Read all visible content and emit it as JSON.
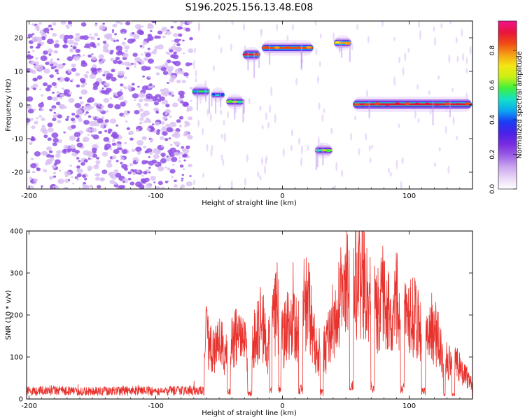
{
  "figure": {
    "title": "S196.2025.156.13.48.E08"
  },
  "chart_data": [
    {
      "type": "heatmap",
      "xlabel": "Height of straight line (km)",
      "ylabel": "Frequency (Hz)",
      "xlim": [
        -202,
        150
      ],
      "ylim": [
        -25,
        25
      ],
      "xticks": [
        -200,
        -100,
        0,
        100
      ],
      "yticks": [
        -20,
        -10,
        0,
        10,
        20
      ],
      "colorbar": {
        "label": "Normalized spectral amplitude",
        "range": [
          0,
          0.97
        ],
        "ticks": [
          0.0,
          0.2,
          0.4,
          0.6,
          0.8
        ],
        "colormap": [
          "#ffffff",
          "#e9d6f7",
          "#c9a4ef",
          "#9b5fe6",
          "#7a2be0",
          "#4a21e8",
          "#1a3cf5",
          "#0aa7f0",
          "#14e0c8",
          "#3ef03e",
          "#c8f014",
          "#f5e614",
          "#f5a014",
          "#f04a14",
          "#e8143c",
          "#f0148c"
        ]
      },
      "noise_region": {
        "x_range": [
          -202,
          -72
        ],
        "y_range": [
          -25,
          25
        ],
        "amplitude": 0.2
      },
      "segments": [
        {
          "x_start": -72,
          "x_end": -57,
          "freq": 4.0,
          "peak": 0.55
        },
        {
          "x_start": -57,
          "x_end": -45,
          "freq": 3.0,
          "peak": 0.45
        },
        {
          "x_start": -45,
          "x_end": -30,
          "freq": 1.0,
          "peak": 0.6
        },
        {
          "x_start": -32,
          "x_end": -17,
          "freq": 15.0,
          "peak": 0.92
        },
        {
          "x_start": -17,
          "x_end": 25,
          "freq": 17.0,
          "peak": 0.85
        },
        {
          "x_start": 25,
          "x_end": 40,
          "freq": -13.5,
          "peak": 0.6
        },
        {
          "x_start": 40,
          "x_end": 55,
          "freq": 18.5,
          "peak": 0.8
        },
        {
          "x_start": 55,
          "x_end": 150,
          "freq": 0.2,
          "peak": 0.95
        }
      ]
    },
    {
      "type": "line",
      "xlabel": "Height of straight line (km)",
      "ylabel": "SNR (10 * v/v)",
      "xlim": [
        -202,
        150
      ],
      "ylim": [
        0,
        400
      ],
      "xticks": [
        -200,
        -100,
        0,
        100
      ],
      "yticks": [
        0,
        100,
        200,
        300,
        400
      ],
      "color": "#e8322d",
      "series": [
        {
          "x": [
            -200,
            -180,
            -160,
            -140,
            -120,
            -100,
            -80,
            -62,
            -61,
            -55,
            -50,
            -45,
            -40,
            -35,
            -30,
            -28,
            -24,
            -20,
            -16,
            -12,
            -8,
            -4,
            0,
            4,
            8,
            12,
            16,
            20,
            24,
            28,
            30,
            34,
            38,
            42,
            46,
            50,
            54,
            58,
            62,
            66,
            70,
            74,
            78,
            82,
            86,
            90,
            94,
            98,
            102,
            106,
            110,
            114,
            118,
            122,
            126,
            130,
            134,
            138,
            142,
            146,
            150
          ],
          "y": [
            20,
            22,
            18,
            20,
            21,
            19,
            22,
            20,
            230,
            150,
            180,
            160,
            210,
            190,
            200,
            120,
            170,
            230,
            250,
            150,
            240,
            300,
            190,
            250,
            310,
            210,
            300,
            320,
            220,
            130,
            190,
            150,
            240,
            270,
            330,
            390,
            300,
            400,
            380,
            360,
            310,
            280,
            350,
            300,
            260,
            320,
            310,
            240,
            280,
            260,
            230,
            200,
            240,
            200,
            150,
            120,
            130,
            110,
            90,
            70,
            50
          ]
        }
      ]
    }
  ]
}
